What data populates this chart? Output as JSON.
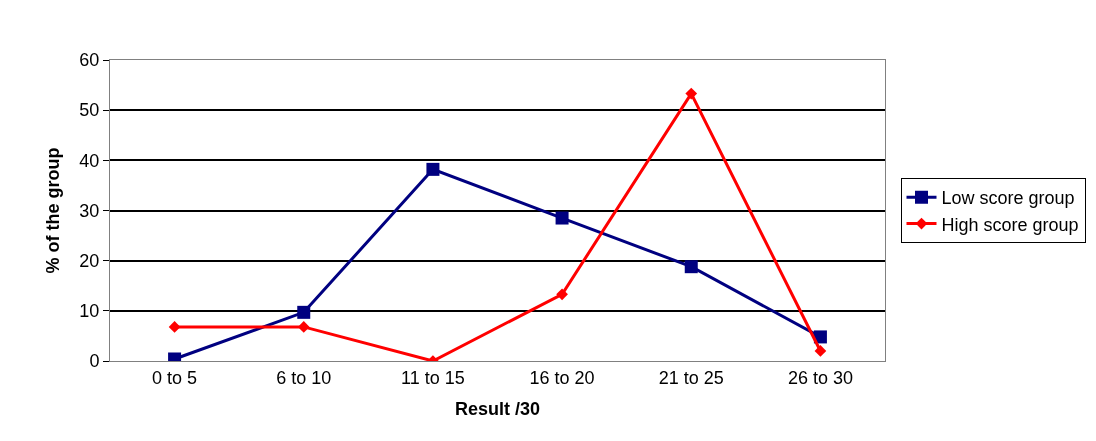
{
  "chart_data": {
    "type": "line",
    "xlabel": "Result /30",
    "ylabel": "% of the group",
    "categories": [
      "0 to 5",
      "6 to 10",
      "11 to 15",
      "16 to 20",
      "21 to 25",
      "26 to 30"
    ],
    "series": [
      {
        "name": "Low score group",
        "color": "#000080",
        "marker": "square",
        "values": [
          0.4,
          9.7,
          38.2,
          28.5,
          18.8,
          4.8
        ]
      },
      {
        "name": "High score group",
        "color": "#ff0000",
        "marker": "diamond",
        "values": [
          6.8,
          6.8,
          0,
          13.3,
          53.3,
          2
        ]
      }
    ],
    "ylim": [
      0,
      60
    ],
    "yticks": [
      0,
      10,
      20,
      30,
      40,
      50,
      60
    ],
    "grid": "y",
    "legend": "right"
  }
}
